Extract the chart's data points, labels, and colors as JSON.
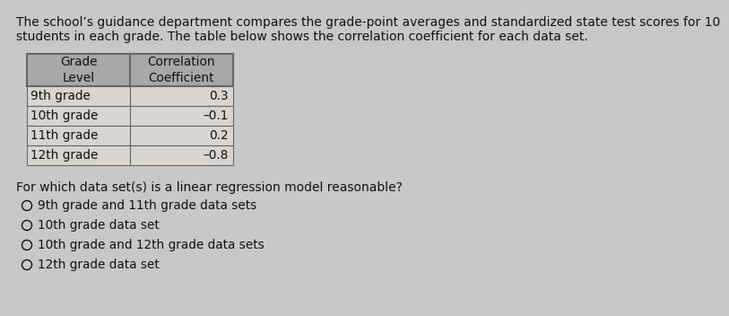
{
  "paragraph_text_line1": "The school’s guidance department compares the grade-point averages and standardized state test scores for 10",
  "paragraph_text_line2": "students in each grade. The table below shows the correlation coefficient for each data set.",
  "table_header_col1": "Grade\nLevel",
  "table_header_col2": "Correlation\nCoefficient",
  "table_rows": [
    [
      "9th grade",
      "0.3"
    ],
    [
      "10th grade",
      "–0.1"
    ],
    [
      "11th grade",
      "0.2"
    ],
    [
      "12th grade",
      "–0.8"
    ]
  ],
  "question_text": "For which data set(s) is a linear regression model reasonable?",
  "options": [
    "9th grade and 11th grade data sets",
    "10th grade data set",
    "10th grade and 12th grade data sets",
    "12th grade data set"
  ],
  "bg_color": "#c8c8c8",
  "table_header_bg": "#a8a8a8",
  "table_row_bg": "#d8d4d0",
  "table_border_color": "#666666",
  "text_color": "#111111",
  "paragraph_fontsize": 10.0,
  "question_fontsize": 10.0,
  "option_fontsize": 9.8,
  "table_fontsize": 9.8
}
